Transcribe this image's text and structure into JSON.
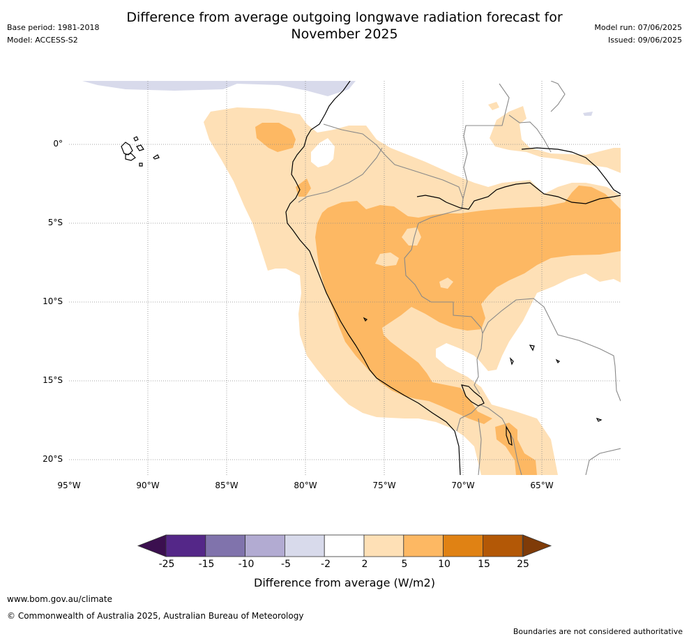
{
  "title_line1": "Difference from average outgoing longwave radiation forecast for",
  "title_line2": "November 2025",
  "base_period": "Base period: 1981-2018",
  "model": "Model: ACCESS-S2",
  "model_run": "Model run: 07/06/2025",
  "issued": "Issued: 09/06/2025",
  "lat_labels": [
    "0°",
    "5°S",
    "10°S",
    "15°S",
    "20°S"
  ],
  "lon_labels": [
    "95°W",
    "90°W",
    "85°W",
    "80°W",
    "75°W",
    "70°W",
    "65°W"
  ],
  "colorbar": {
    "title": "Difference from average (W/m2)",
    "ticks": [
      "-25",
      "-15",
      "-10",
      "-5",
      "-2",
      "2",
      "5",
      "10",
      "15",
      "25"
    ],
    "colors": [
      "#3b0f4f",
      "#542788",
      "#8073ac",
      "#b2abd2",
      "#d8daeb",
      "#ffffff",
      "#fee0b6",
      "#fdb863",
      "#e08214",
      "#b35806",
      "#7f3b08"
    ]
  },
  "footer": {
    "url": "www.bom.gov.au/climate",
    "copyright": "© Commonwealth of Australia 2025, Australian Bureau of Meteorology",
    "boundaries": "Boundaries are not considered authoritative"
  }
}
